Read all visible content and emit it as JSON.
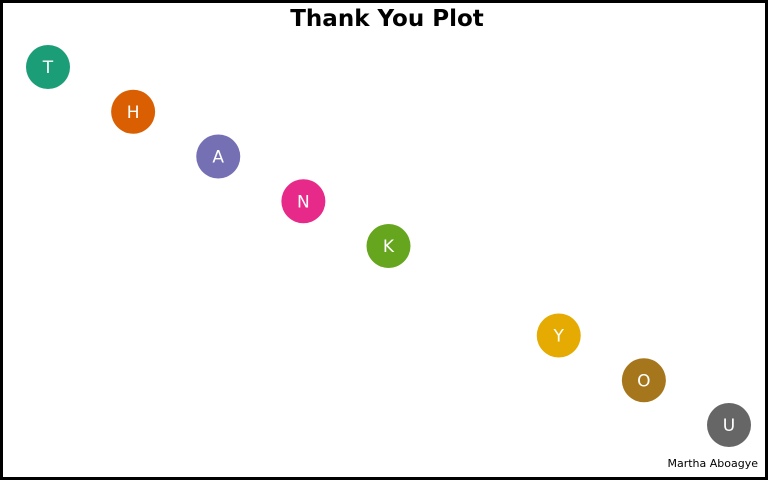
{
  "chart_data": {
    "type": "scatter",
    "title": "Thank You Plot",
    "caption": "Martha Aboagye",
    "xlabel": "",
    "ylabel": "",
    "grid": false,
    "xlim": [
      0.5,
      9.5
    ],
    "ylim": [
      0,
      10
    ],
    "points": [
      {
        "x": 1,
        "y": 9,
        "label": "T",
        "color": "#1b9e77"
      },
      {
        "x": 2,
        "y": 8,
        "label": "H",
        "color": "#d95f02"
      },
      {
        "x": 3,
        "y": 7,
        "label": "A",
        "color": "#7570b3"
      },
      {
        "x": 4,
        "y": 6,
        "label": "N",
        "color": "#e7298a"
      },
      {
        "x": 5,
        "y": 5,
        "label": "K",
        "color": "#66a61e"
      },
      {
        "x": 7,
        "y": 3,
        "label": "Y",
        "color": "#e6ab02"
      },
      {
        "x": 8,
        "y": 2,
        "label": "O",
        "color": "#a6761d"
      },
      {
        "x": 9,
        "y": 1,
        "label": "U",
        "color": "#666666"
      }
    ]
  }
}
